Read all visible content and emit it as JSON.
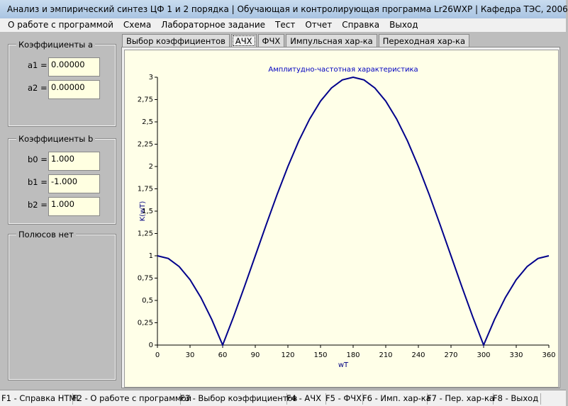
{
  "window": {
    "title": "Анализ и эмпирический синтез ЦФ 1 и 2 порядка | Обучающая и контролирующая программа Lr26WXP | Кафедра ТЭС, 2006"
  },
  "menu": [
    "О работе с программой",
    "Схема",
    "Лабораторное задание",
    "Тест",
    "Отчет",
    "Справка",
    "Выход"
  ],
  "coefficients_a": {
    "title": "Коэффициенты  a",
    "fields": [
      {
        "label": "a1 =",
        "value": "0.00000"
      },
      {
        "label": "a2 =",
        "value": "0.00000"
      }
    ]
  },
  "coefficients_b": {
    "title": "Коэффициенты  b",
    "fields": [
      {
        "label": "b0 =",
        "value": "1.000"
      },
      {
        "label": "b1 =",
        "value": "-1.000"
      },
      {
        "label": "b2 =",
        "value": "1.000"
      }
    ]
  },
  "poles": {
    "title": "Полюсов нет"
  },
  "tabs": [
    "Выбор коэффициентов",
    "АЧХ",
    "ФЧХ",
    "Импульсная хар-ка",
    "Переходная хар-ка"
  ],
  "status_bar": [
    "F1 - Справка HTML",
    "F2 - О работе с программой",
    "F3 - Выбор коэффициентов",
    "F4 - АЧХ",
    "F5 - ФЧХ",
    "F6 - Имп. хар-ка",
    "F7 - Пер. хар-ка",
    "F8 - Выход"
  ],
  "chart_data": {
    "type": "line",
    "title": "Амплитудно-частотная характеристика",
    "x_label": "wT",
    "y_label": "K(wT)",
    "color": "#00008b",
    "x": [
      0,
      10,
      20,
      30,
      40,
      50,
      60,
      70,
      80,
      90,
      100,
      110,
      120,
      130,
      140,
      150,
      160,
      170,
      180,
      190,
      200,
      210,
      220,
      230,
      240,
      250,
      260,
      270,
      280,
      290,
      300,
      310,
      320,
      330,
      340,
      350,
      360
    ],
    "values": [
      1,
      0.97,
      0.879,
      0.732,
      0.532,
      0.286,
      0,
      0.316,
      0.653,
      1,
      1.347,
      1.684,
      2,
      2.286,
      2.532,
      2.732,
      2.879,
      2.97,
      3,
      2.97,
      2.879,
      2.732,
      2.532,
      2.286,
      2,
      1.684,
      1.347,
      1,
      0.653,
      0.316,
      0,
      0.286,
      0.532,
      0.732,
      0.879,
      0.97,
      1
    ],
    "xlim": [
      0,
      360
    ],
    "xticks": [
      0,
      30,
      60,
      90,
      120,
      150,
      180,
      210,
      240,
      270,
      300,
      330,
      360
    ],
    "ylim": [
      0,
      3
    ],
    "yticks": [
      0,
      {
        "value": 0.25,
        "label": "0,25"
      },
      {
        "value": 0.5,
        "label": "0,5"
      },
      {
        "value": 0.75,
        "label": "0,75"
      },
      1,
      {
        "value": 1.25,
        "label": "1,25"
      },
      {
        "value": 1.5,
        "label": "1,5"
      },
      {
        "value": 1.75,
        "label": "1,75"
      },
      2,
      {
        "value": 2.25,
        "label": "2,25"
      },
      {
        "value": 2.5,
        "label": "2,5"
      },
      {
        "value": 2.75,
        "label": "2,75"
      },
      3
    ],
    "grid": false
  }
}
